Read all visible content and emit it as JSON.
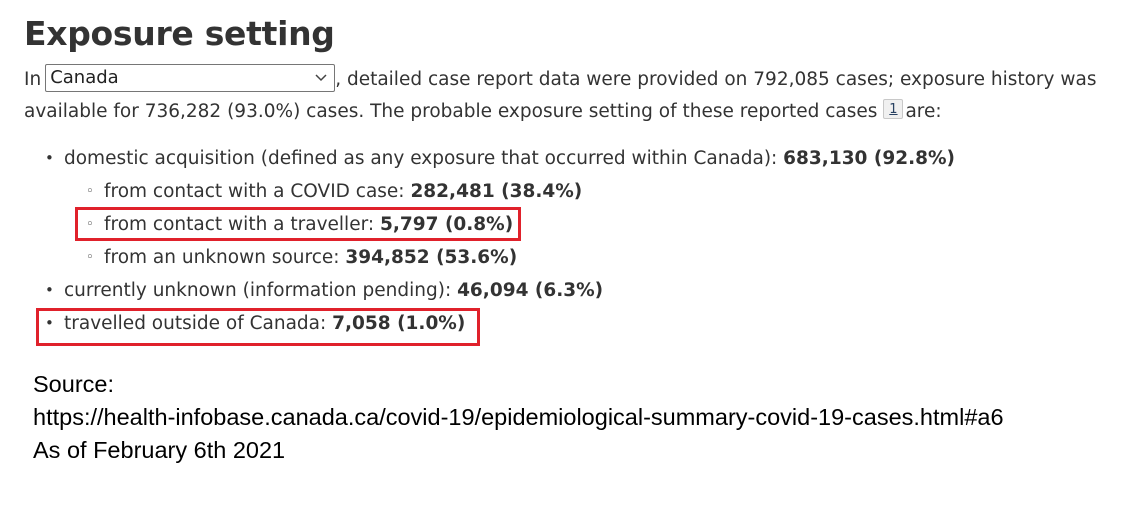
{
  "page_title": "Exposure setting",
  "intro": {
    "prefix": "In",
    "jurisdiction_selected": "Canada",
    "text_after_select": ", detailed case report data were provided on 792,085 cases; exposure history was",
    "line2_before_footnote": "available for 736,282 (93.0%) cases. The probable exposure setting of these reported cases",
    "footnote_label": "1",
    "line2_after_footnote": "are:"
  },
  "exposure_items": [
    {
      "level": 1,
      "label": "domestic acquisition (defined as any exposure that occurred within Canada): ",
      "value": "683,130 (92.8%)"
    },
    {
      "level": 2,
      "label": "from contact with a COVID case: ",
      "value": "282,481 (38.4%)"
    },
    {
      "level": 2,
      "label": "from contact with a traveller: ",
      "value": "5,797 (0.8%)",
      "highlighted": true
    },
    {
      "level": 2,
      "label": "from an unknown source: ",
      "value": "394,852 (53.6%)"
    },
    {
      "level": 1,
      "label": "currently unknown (information pending): ",
      "value": "46,094 (6.3%)"
    },
    {
      "level": 1,
      "label": "travelled outside of Canada: ",
      "value": "7,058 (1.0%)",
      "highlighted": true
    }
  ],
  "bullets": {
    "level1": "•",
    "level2": "◦"
  },
  "source": {
    "label": "Source:",
    "url": "https://health-infobase.canada.ca/covid-19/epidemiological-summary-covid-19-cases.html#a6",
    "as_of": "As of February 6th 2021"
  },
  "colors": {
    "text": "#333333",
    "highlight_border": "#e0212b",
    "source_text": "#000000"
  },
  "icons": {
    "select_arrow": "chevron-down-icon"
  }
}
